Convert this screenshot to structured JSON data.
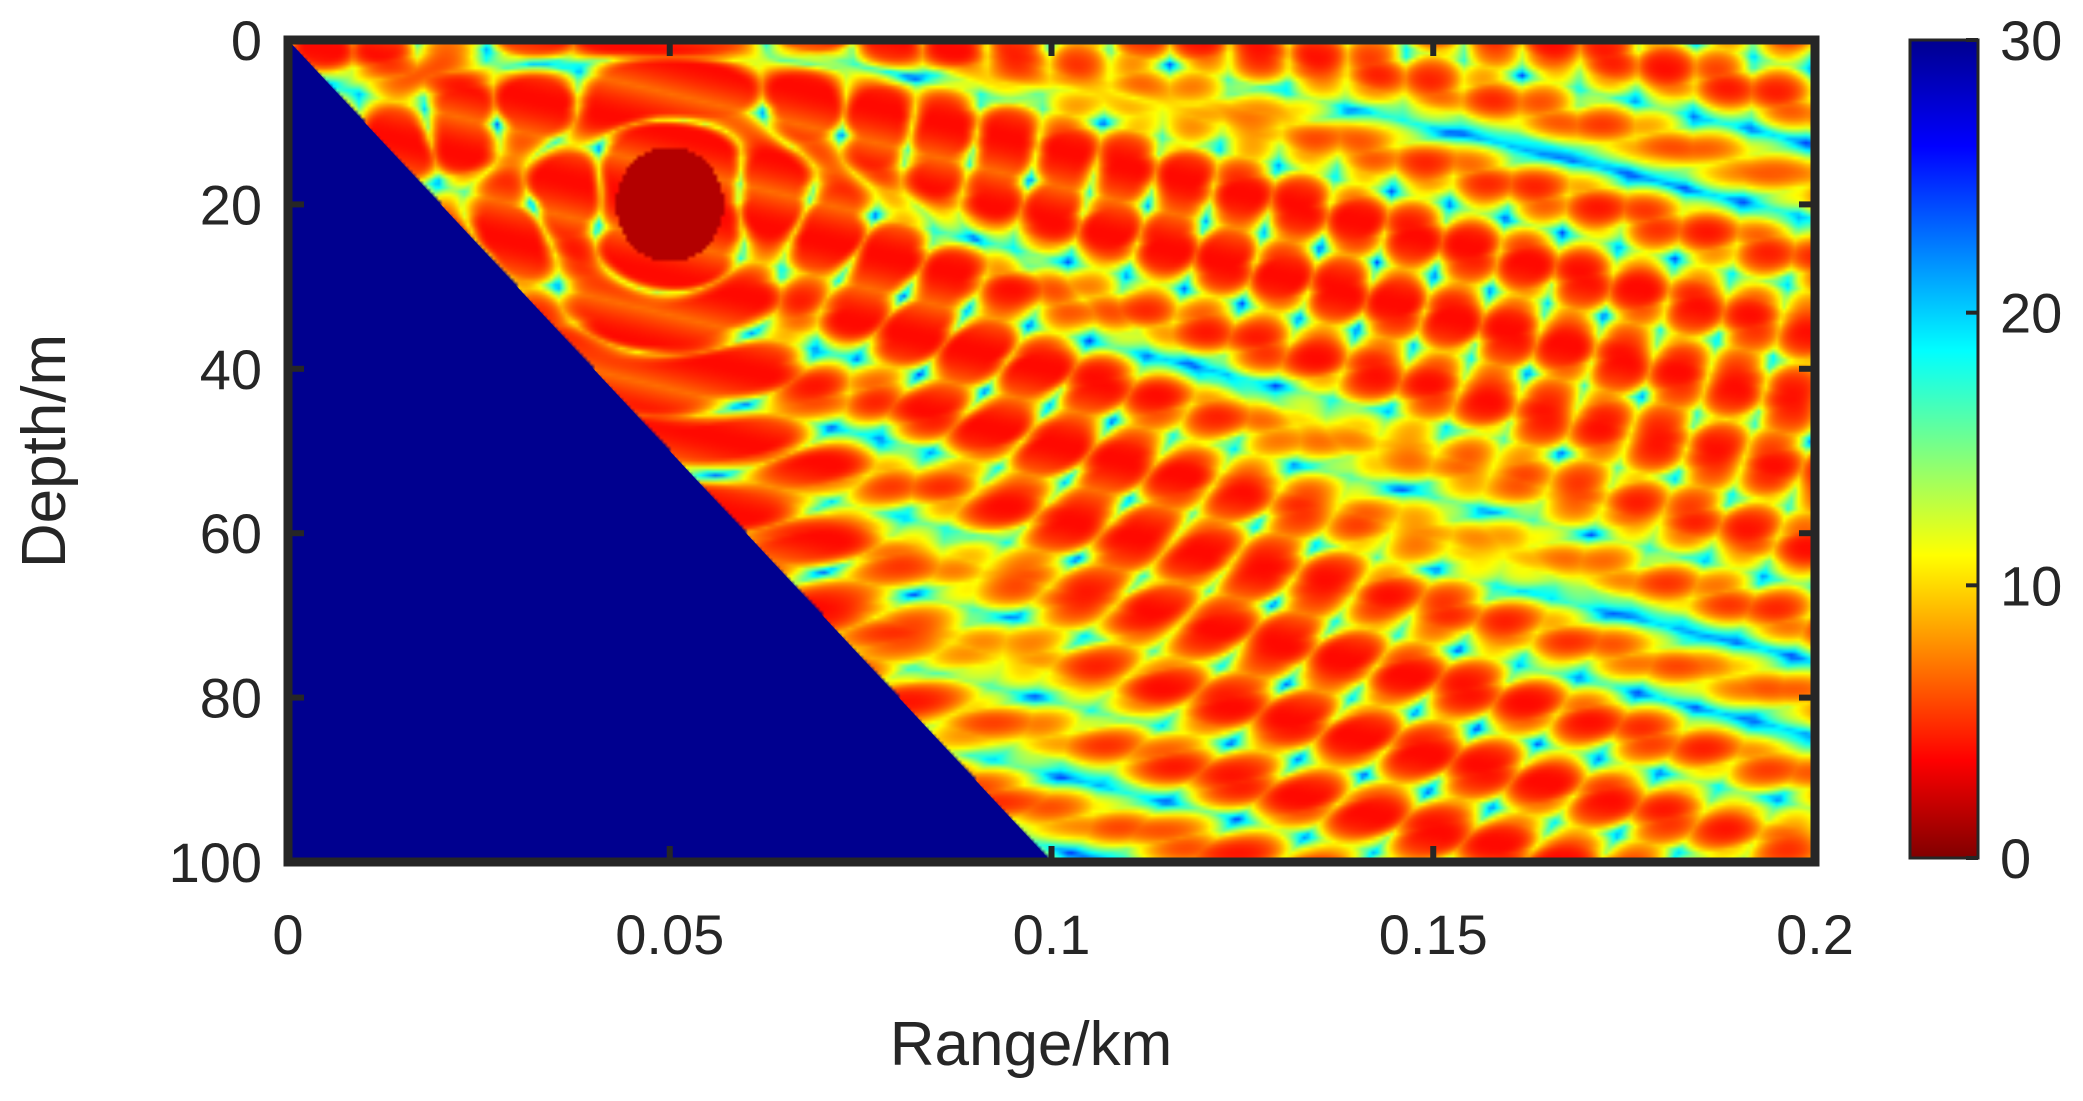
{
  "chart_data": {
    "type": "heatmap",
    "title": "",
    "xlabel": "Range/km",
    "ylabel": "Depth/m",
    "xlim": [
      0,
      0.2
    ],
    "ylim": [
      0,
      100
    ],
    "y_reversed": true,
    "x_ticks": [
      "0",
      "0.05",
      "0.1",
      "0.15",
      "0.2"
    ],
    "x_tick_values": [
      0,
      0.05,
      0.1,
      0.15,
      0.2
    ],
    "y_ticks": [
      "0",
      "20",
      "40",
      "60",
      "80",
      "100"
    ],
    "y_tick_values": [
      0,
      20,
      40,
      60,
      80,
      100
    ],
    "colorbar": {
      "colormap": "jet (reversed)",
      "clim": [
        0,
        30
      ],
      "ticks": [
        "0",
        "10",
        "20",
        "30"
      ],
      "tick_values": [
        0,
        10,
        20,
        30
      ]
    },
    "seafloor": {
      "description_values": "sloping bottom boundary, masked region at max color value",
      "points": [
        [
          0,
          0
        ],
        [
          0.1,
          100
        ]
      ],
      "masked_value": 30
    },
    "source": {
      "range_km": 0.05,
      "depth_m": 20
    },
    "field_value_range": [
      0,
      30
    ],
    "grid": false,
    "legend": "none"
  },
  "colors": {
    "mask": "#00008F",
    "axis": "#262626",
    "background": "#ffffff"
  }
}
